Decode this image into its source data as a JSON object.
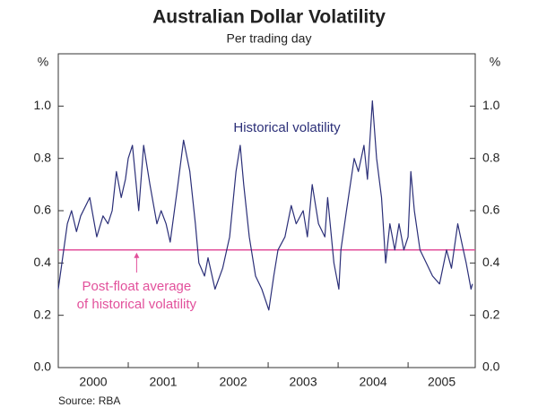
{
  "chart_data": {
    "type": "line",
    "title": "Australian Dollar Volatility",
    "subtitle": "Per trading day",
    "y_unit": "%",
    "y2_unit": "%",
    "source": "Source: RBA",
    "x": [
      2000.0,
      2000.13,
      2000.19,
      2000.26,
      2000.32,
      2000.45,
      2000.55,
      2000.64,
      2000.71,
      2000.77,
      2000.83,
      2000.9,
      2000.96,
      2001.0,
      2001.06,
      2001.15,
      2001.22,
      2001.31,
      2001.41,
      2001.47,
      2001.54,
      2001.6,
      2001.71,
      2001.79,
      2001.88,
      2001.96,
      2002.01,
      2002.09,
      2002.14,
      2002.24,
      2002.35,
      2002.45,
      2002.54,
      2002.6,
      2002.65,
      2002.73,
      2002.82,
      2002.91,
      2003.01,
      2003.08,
      2003.14,
      2003.24,
      2003.33,
      2003.4,
      2003.5,
      2003.56,
      2003.63,
      2003.72,
      2003.81,
      2003.85,
      2003.94,
      2004.01,
      2004.04,
      2004.12,
      2004.23,
      2004.29,
      2004.37,
      2004.42,
      2004.49,
      2004.55,
      2004.62,
      2004.68,
      2004.74,
      2004.81,
      2004.87,
      2004.94,
      2005.0,
      2005.04,
      2005.09,
      2005.17,
      2005.26,
      2005.35,
      2005.45,
      2005.55,
      2005.62,
      2005.71,
      2005.79,
      2005.83,
      2005.9,
      2005.92
    ],
    "series": [
      {
        "name": "Historical volatility",
        "color": "#2b2f78",
        "values": [
          0.3,
          0.55,
          0.6,
          0.52,
          0.58,
          0.65,
          0.5,
          0.58,
          0.55,
          0.6,
          0.75,
          0.65,
          0.72,
          0.8,
          0.85,
          0.6,
          0.85,
          0.7,
          0.55,
          0.6,
          0.55,
          0.48,
          0.7,
          0.87,
          0.75,
          0.55,
          0.4,
          0.35,
          0.42,
          0.3,
          0.38,
          0.5,
          0.75,
          0.85,
          0.7,
          0.5,
          0.35,
          0.3,
          0.22,
          0.35,
          0.45,
          0.5,
          0.62,
          0.55,
          0.6,
          0.5,
          0.7,
          0.55,
          0.5,
          0.65,
          0.4,
          0.3,
          0.45,
          0.6,
          0.8,
          0.75,
          0.85,
          0.72,
          1.02,
          0.8,
          0.65,
          0.4,
          0.55,
          0.45,
          0.55,
          0.45,
          0.5,
          0.75,
          0.6,
          0.45,
          0.4,
          0.35,
          0.32,
          0.45,
          0.38,
          0.55,
          0.45,
          0.4,
          0.3,
          0.32
        ]
      }
    ],
    "average": {
      "value": 0.45,
      "color": "#e2509b",
      "label": [
        "Post-float average",
        "of historical volatility"
      ]
    },
    "xlim": [
      2000,
      2005.96
    ],
    "xticks": [
      2000,
      2001,
      2002,
      2003,
      2004,
      2005
    ],
    "ylim": [
      0,
      1.2
    ],
    "yticks": [
      {
        "value": 0,
        "label": "0.0"
      },
      0.2,
      0.4,
      0.6,
      0.8,
      {
        "value": 1,
        "label": "1.0"
      }
    ],
    "y2lim": [
      0,
      1.2
    ],
    "y2ticks": [
      {
        "value": 0,
        "label": "0.0"
      },
      0.2,
      0.4,
      0.6,
      0.8,
      {
        "value": 1,
        "label": "1.0"
      }
    ]
  }
}
